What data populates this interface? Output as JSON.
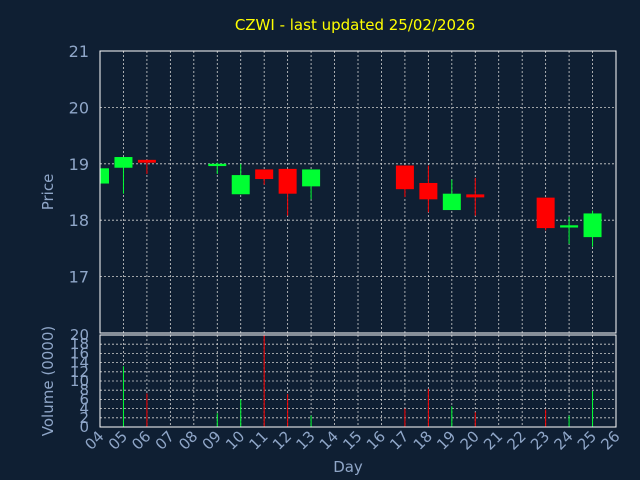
{
  "chart_data": {
    "type": "candlestick",
    "title": "CZWI - last updated 25/02/2026",
    "xlabel": "Day",
    "price_panel": {
      "ylabel": "Price",
      "ylim": [
        16,
        21
      ],
      "yticks": [
        "17",
        "18",
        "19",
        "20",
        "21"
      ]
    },
    "volume_panel": {
      "ylabel": "Volume (0000)",
      "ylim": [
        0,
        20
      ],
      "yticks": [
        "0",
        "2",
        "4",
        "6",
        "8",
        "10",
        "12",
        "14",
        "16",
        "18",
        "20"
      ]
    },
    "x_ticks": [
      "04",
      "05",
      "06",
      "07",
      "08",
      "09",
      "10",
      "11",
      "12",
      "13",
      "14",
      "15",
      "16",
      "17",
      "18",
      "19",
      "20",
      "21",
      "22",
      "23",
      "24",
      "25",
      "26"
    ],
    "candles": [
      {
        "day": "04",
        "open": 18.65,
        "close": 18.92,
        "high": 18.92,
        "low": 18.65
      },
      {
        "day": "05",
        "open": 18.93,
        "close": 19.12,
        "high": 19.12,
        "low": 18.47
      },
      {
        "day": "06",
        "open": 19.07,
        "close": 19.02,
        "high": 19.07,
        "low": 18.82
      },
      {
        "day": "09",
        "open": 18.96,
        "close": 19.0,
        "high": 19.02,
        "low": 18.82
      },
      {
        "day": "10",
        "open": 18.46,
        "close": 18.8,
        "high": 19.0,
        "low": 18.46
      },
      {
        "day": "11",
        "open": 18.9,
        "close": 18.73,
        "high": 18.9,
        "low": 18.63
      },
      {
        "day": "12",
        "open": 18.91,
        "close": 18.47,
        "high": 18.91,
        "low": 18.08
      },
      {
        "day": "13",
        "open": 18.6,
        "close": 18.9,
        "high": 18.9,
        "low": 18.37
      },
      {
        "day": "17",
        "open": 18.97,
        "close": 18.55,
        "high": 18.97,
        "low": 18.41
      },
      {
        "day": "18",
        "open": 18.66,
        "close": 18.37,
        "high": 18.97,
        "low": 18.14
      },
      {
        "day": "19",
        "open": 18.18,
        "close": 18.47,
        "high": 18.72,
        "low": 18.18
      },
      {
        "day": "20",
        "open": 18.44,
        "close": 18.41,
        "high": 18.75,
        "low": 18.08
      },
      {
        "day": "23",
        "open": 18.4,
        "close": 17.86,
        "high": 18.4,
        "low": 17.82
      },
      {
        "day": "24",
        "open": 17.87,
        "close": 17.91,
        "high": 18.06,
        "low": 17.58
      },
      {
        "day": "25",
        "open": 17.7,
        "close": 18.12,
        "high": 18.17,
        "low": 17.53
      }
    ],
    "volumes": [
      {
        "day": "05",
        "value": 13.2,
        "direction": "up"
      },
      {
        "day": "06",
        "value": 7.3,
        "direction": "down"
      },
      {
        "day": "09",
        "value": 3.0,
        "direction": "up"
      },
      {
        "day": "10",
        "value": 6.0,
        "direction": "up"
      },
      {
        "day": "11",
        "value": 20.0,
        "direction": "down"
      },
      {
        "day": "12",
        "value": 7.2,
        "direction": "down"
      },
      {
        "day": "13",
        "value": 2.5,
        "direction": "up"
      },
      {
        "day": "17",
        "value": 4.0,
        "direction": "down"
      },
      {
        "day": "18",
        "value": 8.3,
        "direction": "down"
      },
      {
        "day": "19",
        "value": 4.5,
        "direction": "up"
      },
      {
        "day": "20",
        "value": 3.2,
        "direction": "down"
      },
      {
        "day": "23",
        "value": 3.8,
        "direction": "down"
      },
      {
        "day": "24",
        "value": 2.5,
        "direction": "up"
      },
      {
        "day": "25",
        "value": 7.8,
        "direction": "up"
      }
    ],
    "grid": true,
    "colors": {
      "background": "#0f1f33",
      "up": "#00ff33",
      "down": "#ff0000",
      "grid": "#d0d0d0",
      "title": "#ffff00",
      "axis_text": "#8fa6c8"
    }
  }
}
